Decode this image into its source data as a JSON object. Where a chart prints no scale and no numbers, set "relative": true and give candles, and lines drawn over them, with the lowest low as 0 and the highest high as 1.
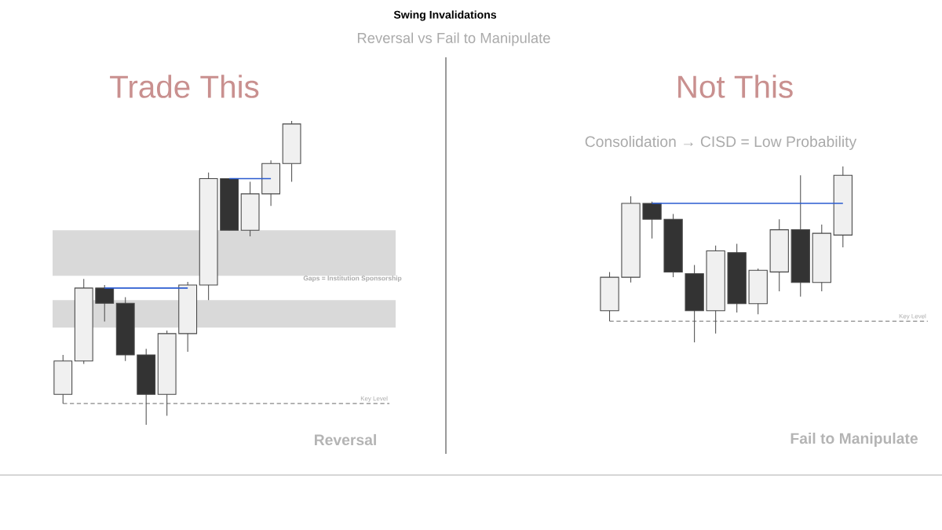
{
  "chart_data": [
    {
      "type": "candlestick",
      "relative": true,
      "title": "Trade This",
      "annotations": [
        "Swing Invalidations",
        "Reversal vs Fail to Manipulate",
        "Gaps = Institution Sponsorship",
        "Reversal"
      ],
      "categories": [
        null,
        null,
        null,
        null,
        null,
        null,
        null,
        null,
        null,
        null,
        null,
        null
      ],
      "ohlc": [
        [
          0.1,
          0.23,
          0.07,
          0.21
        ],
        [
          0.21,
          0.48,
          0.2,
          0.45
        ],
        [
          0.45,
          0.46,
          0.34,
          0.4
        ],
        [
          0.4,
          0.42,
          0.21,
          0.23
        ],
        [
          0.23,
          0.25,
          0,
          0.1
        ],
        [
          0.1,
          0.31,
          0.03,
          0.3
        ],
        [
          0.3,
          0.47,
          0.24,
          0.46
        ],
        [
          0.46,
          0.83,
          0.41,
          0.81
        ],
        [
          0.81,
          0.81,
          0.64,
          0.64
        ],
        [
          0.64,
          0.8,
          0.62,
          0.76
        ],
        [
          0.76,
          0.87,
          0.72,
          0.86
        ],
        [
          0.86,
          1,
          0.8,
          0.99
        ]
      ],
      "series": [
        {
          "type": "line",
          "color": "#2a5bd0",
          "values": [
            null,
            null,
            0.45,
            0.45,
            0.45,
            0.45,
            0.45,
            null,
            null,
            null,
            null,
            null
          ]
        },
        {
          "type": "line",
          "color": "#2a5bd0",
          "values": [
            null,
            null,
            null,
            null,
            null,
            null,
            null,
            null,
            0.81,
            0.81,
            0.81,
            null
          ]
        }
      ],
      "bands": [
        {
          "axis": "y",
          "from": 0.49,
          "to": 0.64,
          "color": "#d9d9d9"
        },
        {
          "axis": "y",
          "from": 0.32,
          "to": 0.41,
          "color": "#d9d9d9"
        }
      ],
      "ref_lines": [
        {
          "axis": "y",
          "value": 0.07,
          "label": "Key Level",
          "color": "#555555",
          "line_style": "dashed"
        }
      ]
    },
    {
      "type": "candlestick",
      "relative": true,
      "title": "Not This",
      "subtitle": "Consolidation → CISD = Low Probability",
      "annotations": [
        "Fail to Manipulate"
      ],
      "categories": [
        null,
        null,
        null,
        null,
        null,
        null,
        null,
        null,
        null,
        null,
        null,
        null
      ],
      "ohlc": [
        [
          0.18,
          0.4,
          0.12,
          0.37
        ],
        [
          0.37,
          0.83,
          0.34,
          0.79
        ],
        [
          0.79,
          0.8,
          0.59,
          0.7
        ],
        [
          0.7,
          0.73,
          0.37,
          0.4
        ],
        [
          0.39,
          0.44,
          0,
          0.18
        ],
        [
          0.18,
          0.55,
          0.05,
          0.52
        ],
        [
          0.51,
          0.56,
          0.17,
          0.22
        ],
        [
          0.22,
          0.42,
          0.16,
          0.41
        ],
        [
          0.4,
          0.7,
          0.29,
          0.64
        ],
        [
          0.64,
          0.95,
          0.26,
          0.34
        ],
        [
          0.34,
          0.67,
          0.29,
          0.62
        ],
        [
          0.61,
          1,
          0.54,
          0.95
        ]
      ],
      "series": [
        {
          "type": "line",
          "color": "#2a5bd0",
          "values": [
            null,
            null,
            0.79,
            0.79,
            0.79,
            0.79,
            0.79,
            0.79,
            0.79,
            0.79,
            0.79,
            0.79
          ]
        }
      ],
      "ref_lines": [
        {
          "axis": "y",
          "value": 0.12,
          "label": "Key Level",
          "color": "#555555",
          "line_style": "dashed"
        }
      ]
    }
  ]
}
